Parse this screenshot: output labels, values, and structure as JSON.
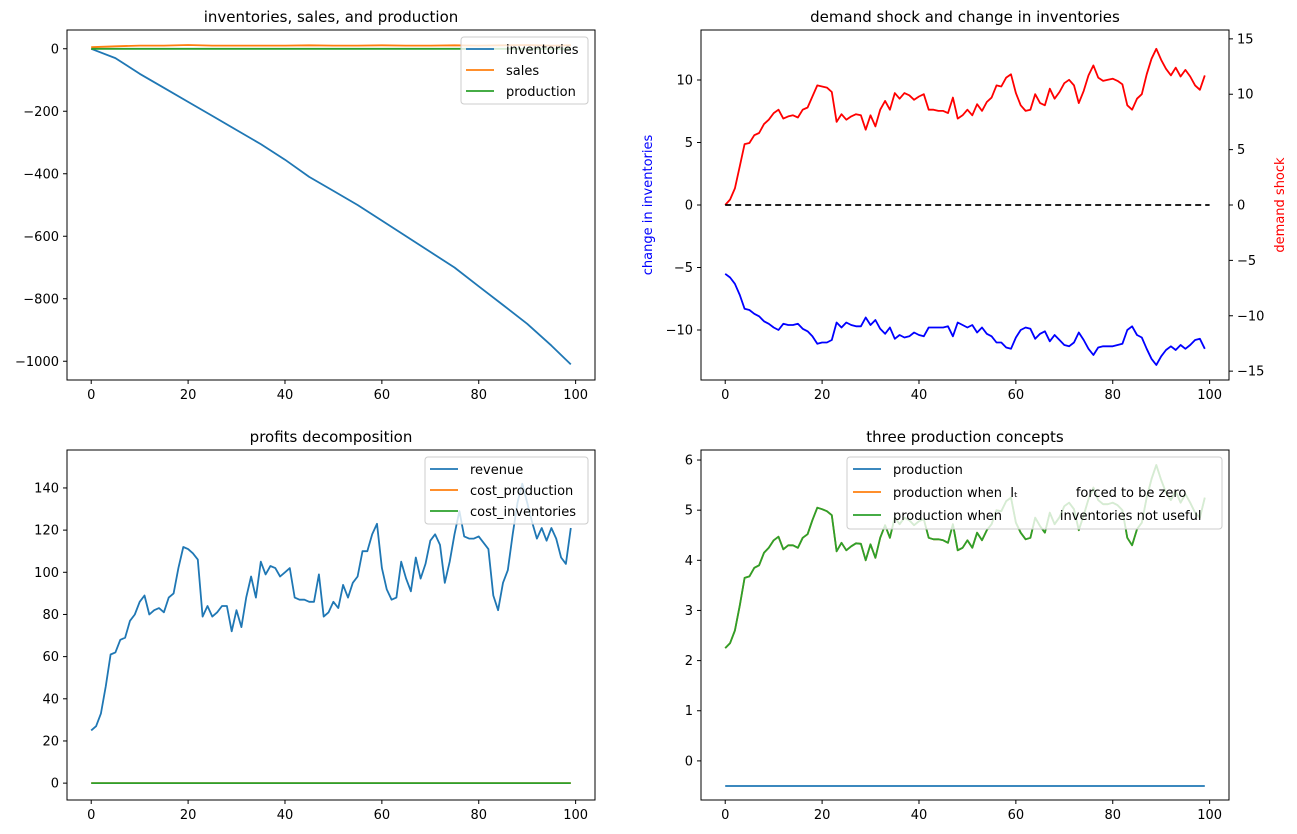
{
  "chart_data": [
    {
      "type": "line",
      "title": "inventories, sales, and production",
      "xlabel": "",
      "ylabel": "",
      "xlim": [
        -5,
        104
      ],
      "ylim": [
        -1060,
        60
      ],
      "xticks": [
        0,
        20,
        40,
        60,
        80,
        100
      ],
      "yticks": [
        0,
        -200,
        -400,
        -600,
        -800,
        -1000
      ],
      "grid": false,
      "legend": "upper right",
      "colors": {
        "inventories": "#1f77b4",
        "sales": "#ff7f0e",
        "production": "#2ca02c"
      },
      "series": [
        {
          "name": "inventories",
          "x": [
            0,
            5,
            10,
            15,
            20,
            25,
            30,
            35,
            40,
            45,
            50,
            55,
            60,
            65,
            70,
            75,
            80,
            85,
            90,
            95,
            99
          ],
          "y": [
            0,
            -30,
            -80,
            -125,
            -170,
            -215,
            -260,
            -305,
            -355,
            -410,
            -455,
            -500,
            -550,
            -600,
            -650,
            -700,
            -760,
            -820,
            -880,
            -950,
            -1010
          ]
        },
        {
          "name": "sales",
          "x": [
            0,
            5,
            10,
            15,
            20,
            25,
            30,
            35,
            40,
            45,
            50,
            55,
            60,
            65,
            70,
            75,
            80,
            85,
            90,
            95,
            99
          ],
          "y": [
            5,
            8,
            10,
            10,
            12,
            10,
            10,
            10,
            10,
            11,
            10,
            10,
            11,
            10,
            10,
            11,
            10,
            11,
            12,
            10,
            11
          ]
        },
        {
          "name": "production",
          "x": [
            0,
            99
          ],
          "y": [
            0,
            0
          ]
        }
      ]
    },
    {
      "type": "line",
      "title": "demand shock and change in inventories",
      "xlabel": "",
      "ylabel": "change in inventories",
      "ylabel_right": "demand shock",
      "xlim": [
        -5,
        104
      ],
      "ylim": [
        -14,
        14
      ],
      "ylim_right": [
        -15.8,
        15.8
      ],
      "xticks": [
        0,
        20,
        40,
        60,
        80,
        100
      ],
      "yticks": [
        10,
        5,
        0,
        -5,
        -10
      ],
      "yticks_right": [
        15,
        10,
        5,
        0,
        -5,
        -10,
        -15
      ],
      "grid": false,
      "colors": {
        "change in inventories": "#0000ff",
        "demand shock": "#ff0000",
        "zero": "#000000"
      },
      "series": [
        {
          "name": "demand shock",
          "axis": "right",
          "values": [
            0,
            0.5,
            1.5,
            3.5,
            5.5,
            5.6,
            6.3,
            6.5,
            7.3,
            7.7,
            8.3,
            8.6,
            7.8,
            8,
            8.1,
            7.9,
            8.6,
            8.8,
            9.8,
            10.8,
            10.7,
            10.6,
            10.2,
            7.5,
            8.2,
            7.7,
            8,
            8.2,
            8.1,
            6.8,
            8.1,
            7.1,
            8.6,
            9.4,
            8.6,
            10.1,
            9.6,
            10.1,
            9.9,
            9.5,
            9.8,
            10,
            8.6,
            8.6,
            8.5,
            8.5,
            8.3,
            9.7,
            7.8,
            8.1,
            8.6,
            8.1,
            9.1,
            8.5,
            9.3,
            9.7,
            10.8,
            10.7,
            11.5,
            11.8,
            10.1,
            9,
            8.5,
            8.6,
            10,
            9.2,
            9,
            10.5,
            9.6,
            10.2,
            11,
            11.3,
            10.8,
            9.2,
            10.3,
            11.7,
            12.6,
            11.5,
            11.2,
            11.3,
            11.4,
            11.2,
            10.9,
            9,
            8.6,
            9.6,
            10,
            11.8,
            13.2,
            14.1,
            13.1,
            12.3,
            11.7,
            12.4,
            11.6,
            12.2,
            11.6,
            10.8,
            10.4,
            11.7
          ]
        },
        {
          "name": "change in inventories",
          "axis": "left",
          "values": [
            -5.5,
            -5.8,
            -6.3,
            -7.2,
            -8.3,
            -8.4,
            -8.7,
            -8.9,
            -9.3,
            -9.5,
            -9.8,
            -10,
            -9.5,
            -9.6,
            -9.6,
            -9.5,
            -9.9,
            -10.1,
            -10.5,
            -11.1,
            -11,
            -11,
            -10.8,
            -9.4,
            -9.8,
            -9.4,
            -9.6,
            -9.7,
            -9.7,
            -9,
            -9.6,
            -9.2,
            -9.9,
            -10.3,
            -9.8,
            -10.7,
            -10.4,
            -10.6,
            -10.5,
            -10.2,
            -10.4,
            -10.5,
            -9.8,
            -9.8,
            -9.8,
            -9.8,
            -9.7,
            -10.5,
            -9.4,
            -9.6,
            -9.8,
            -9.6,
            -10.2,
            -9.8,
            -10.3,
            -10.5,
            -11,
            -11,
            -11.4,
            -11.5,
            -10.6,
            -10,
            -9.8,
            -9.9,
            -10.7,
            -10.3,
            -10.1,
            -10.9,
            -10.4,
            -10.8,
            -11.2,
            -11.3,
            -11,
            -10.2,
            -10.8,
            -11.5,
            -12,
            -11.4,
            -11.3,
            -11.3,
            -11.3,
            -11.2,
            -11.1,
            -10,
            -9.7,
            -10.4,
            -10.6,
            -11.5,
            -12.3,
            -12.8,
            -12.1,
            -11.6,
            -11.3,
            -11.6,
            -11.2,
            -11.5,
            -11.2,
            -10.8,
            -10.7,
            -11.5
          ]
        },
        {
          "name": "zero",
          "axis": "left",
          "style": "dashed",
          "x": [
            0,
            100
          ],
          "y": [
            0,
            0
          ]
        }
      ]
    },
    {
      "type": "line",
      "title": "profits decomposition",
      "xlabel": "",
      "ylabel": "",
      "xlim": [
        -5,
        104
      ],
      "ylim": [
        -8,
        158
      ],
      "xticks": [
        0,
        20,
        40,
        60,
        80,
        100
      ],
      "yticks": [
        0,
        20,
        40,
        60,
        80,
        100,
        120,
        140
      ],
      "grid": false,
      "legend": "upper right",
      "colors": {
        "revenue": "#1f77b4",
        "cost_production": "#ff7f0e",
        "cost_inventories": "#2ca02c"
      },
      "series": [
        {
          "name": "revenue",
          "values": [
            25,
            27,
            33,
            46,
            61,
            62,
            68,
            69,
            77,
            80,
            86,
            89,
            80,
            82,
            83,
            81,
            88,
            90,
            102,
            112,
            111,
            109,
            106,
            79,
            84,
            79,
            81,
            84,
            84,
            72,
            82,
            74,
            88,
            98,
            88,
            105,
            99,
            103,
            102,
            98,
            100,
            102,
            88,
            87,
            87,
            86,
            86,
            99,
            79,
            81,
            86,
            83,
            94,
            88,
            95,
            98,
            110,
            110,
            118,
            123,
            102,
            92,
            87,
            88,
            105,
            97,
            91,
            107,
            97,
            104,
            115,
            118,
            113,
            95,
            105,
            118,
            129,
            117,
            116,
            116,
            117,
            114,
            111,
            89,
            82,
            95,
            101,
            118,
            133,
            142,
            133,
            124,
            116,
            121,
            115,
            121,
            116,
            107,
            104,
            121
          ]
        },
        {
          "name": "cost_production",
          "x": [
            0,
            99
          ],
          "y": [
            0,
            0
          ]
        },
        {
          "name": "cost_inventories",
          "x": [
            0,
            99
          ],
          "y": [
            0,
            0
          ]
        }
      ]
    },
    {
      "type": "line",
      "title": "three production concepts",
      "xlabel": "",
      "ylabel": "",
      "xlim": [
        -5,
        104
      ],
      "ylim": [
        -0.78,
        6.2
      ],
      "xticks": [
        0,
        20,
        40,
        60,
        80,
        100
      ],
      "yticks": [
        0,
        1,
        2,
        3,
        4,
        5,
        6
      ],
      "grid": false,
      "legend": "upper right",
      "colors": {
        "production": "#1f77b4",
        "forced": "#ff7f0e",
        "not_useful": "#2ca02c"
      },
      "legend_labels": [
        "production",
        "production when  Iₜ              forced to be zero",
        "production when              inventories not useful"
      ],
      "series": [
        {
          "name": "production",
          "x": [
            0,
            99
          ],
          "y": [
            -0.5,
            -0.5
          ]
        },
        {
          "name": "production when  Iₜ              forced to be zero",
          "values": [
            2.25,
            2.35,
            2.6,
            3.1,
            3.65,
            3.68,
            3.85,
            3.9,
            4.15,
            4.25,
            4.4,
            4.47,
            4.22,
            4.3,
            4.3,
            4.25,
            4.45,
            4.52,
            4.8,
            5.05,
            5.02,
            4.98,
            4.9,
            4.18,
            4.35,
            4.2,
            4.28,
            4.34,
            4.33,
            4.0,
            4.32,
            4.05,
            4.45,
            4.7,
            4.45,
            4.86,
            4.72,
            4.85,
            4.8,
            4.7,
            4.78,
            4.82,
            4.45,
            4.42,
            4.42,
            4.4,
            4.35,
            4.72,
            4.2,
            4.25,
            4.4,
            4.25,
            4.55,
            4.4,
            4.6,
            4.72,
            5.0,
            4.98,
            5.18,
            5.25,
            4.75,
            4.55,
            4.42,
            4.45,
            4.85,
            4.68,
            4.55,
            4.95,
            4.72,
            4.86,
            5.08,
            5.15,
            5.02,
            4.6,
            4.9,
            5.22,
            5.45,
            5.2,
            5.12,
            5.12,
            5.15,
            5.1,
            5.0,
            4.45,
            4.3,
            4.62,
            4.75,
            5.25,
            5.62,
            5.9,
            5.6,
            5.35,
            5.2,
            5.38,
            5.15,
            5.32,
            5.15,
            4.95,
            4.85,
            5.25
          ]
        },
        {
          "name": "production when              inventories not useful",
          "values": [
            2.25,
            2.35,
            2.6,
            3.1,
            3.65,
            3.68,
            3.85,
            3.9,
            4.15,
            4.25,
            4.4,
            4.47,
            4.22,
            4.3,
            4.3,
            4.25,
            4.45,
            4.52,
            4.8,
            5.05,
            5.02,
            4.98,
            4.9,
            4.18,
            4.35,
            4.2,
            4.28,
            4.34,
            4.33,
            4.0,
            4.32,
            4.05,
            4.45,
            4.7,
            4.45,
            4.86,
            4.72,
            4.85,
            4.8,
            4.7,
            4.78,
            4.82,
            4.45,
            4.42,
            4.42,
            4.4,
            4.35,
            4.72,
            4.2,
            4.25,
            4.4,
            4.25,
            4.55,
            4.4,
            4.6,
            4.72,
            5.0,
            4.98,
            5.18,
            5.25,
            4.75,
            4.55,
            4.42,
            4.45,
            4.85,
            4.68,
            4.55,
            4.95,
            4.72,
            4.86,
            5.08,
            5.15,
            5.02,
            4.6,
            4.9,
            5.22,
            5.45,
            5.2,
            5.12,
            5.12,
            5.15,
            5.1,
            5.0,
            4.45,
            4.3,
            4.62,
            4.75,
            5.25,
            5.62,
            5.9,
            5.6,
            5.35,
            5.2,
            5.38,
            5.15,
            5.32,
            5.15,
            4.95,
            4.85,
            5.25
          ]
        }
      ]
    }
  ]
}
